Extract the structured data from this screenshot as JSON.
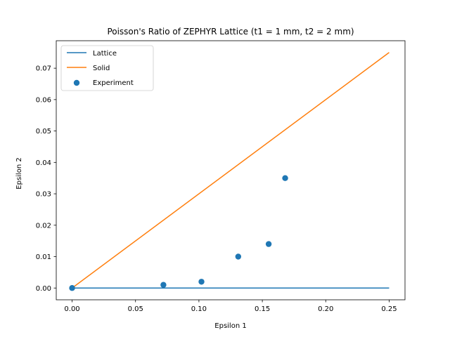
{
  "chart_data": {
    "type": "line",
    "title": "Poisson's Ratio of ZEPHYR Lattice (t1 = 1 mm, t2 = 2 mm)",
    "xlabel": "Epsilon 1",
    "ylabel": "Epsilon 2",
    "xlim": [
      -0.0125,
      0.2625
    ],
    "ylim": [
      -0.00375,
      0.07875
    ],
    "xticks": [
      0.0,
      0.05,
      0.1,
      0.15,
      0.2,
      0.25
    ],
    "xtick_labels": [
      "0.00",
      "0.05",
      "0.10",
      "0.15",
      "0.20",
      "0.25"
    ],
    "yticks": [
      0.0,
      0.01,
      0.02,
      0.03,
      0.04,
      0.05,
      0.06,
      0.07
    ],
    "ytick_labels": [
      "0.00",
      "0.01",
      "0.02",
      "0.03",
      "0.04",
      "0.05",
      "0.06",
      "0.07"
    ],
    "grid": false,
    "legend_position": "upper-left",
    "series": [
      {
        "name": "Lattice",
        "kind": "line",
        "color": "#1f77b4",
        "x": [
          0.0,
          0.25
        ],
        "y": [
          0.0,
          0.0
        ]
      },
      {
        "name": "Solid",
        "kind": "line",
        "color": "#ff7f0e",
        "x": [
          0.0,
          0.25
        ],
        "y": [
          0.0,
          0.075
        ]
      },
      {
        "name": "Experiment",
        "kind": "scatter",
        "color": "#1f77b4",
        "x": [
          0.0,
          0.072,
          0.102,
          0.131,
          0.155,
          0.168
        ],
        "y": [
          0.0,
          0.001,
          0.002,
          0.01,
          0.014,
          0.035
        ]
      }
    ]
  }
}
